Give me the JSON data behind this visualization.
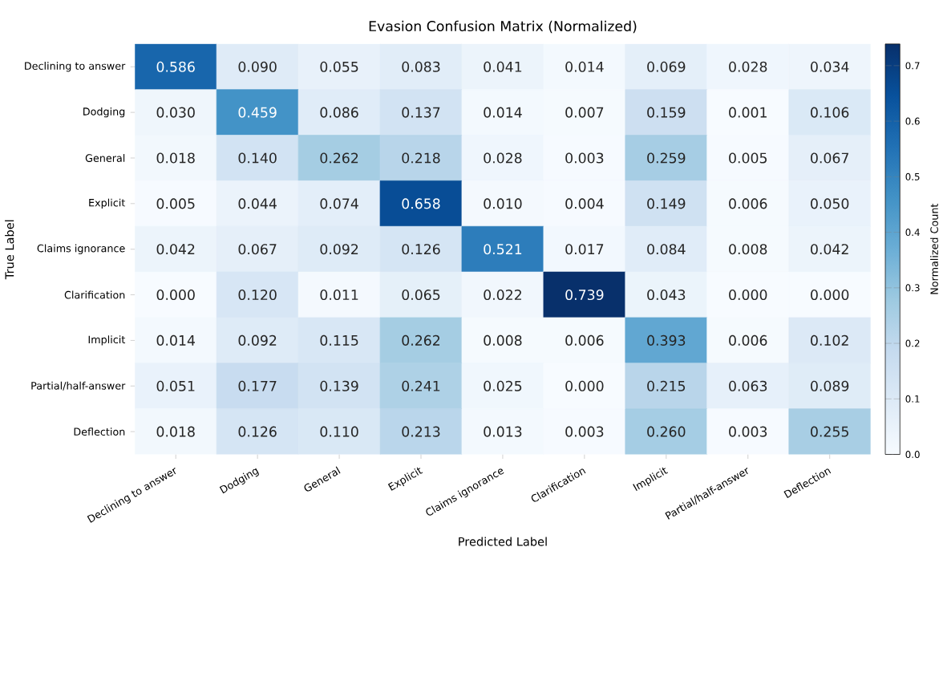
{
  "chart_data": {
    "type": "heatmap",
    "title": "Evasion Confusion Matrix (Normalized)",
    "xlabel": "Predicted Label",
    "ylabel": "True Label",
    "clabel": "Normalized Count",
    "categories": [
      "Declining to answer",
      "Dodging",
      "General",
      "Explicit",
      "Claims ignorance",
      "Clarification",
      "Implicit",
      "Partial/half-answer",
      "Deflection"
    ],
    "y_categories": [
      "Declining to answer",
      "Dodging",
      "General",
      "Explicit",
      "Claims ignorance",
      "Clarification",
      "Implicit",
      "Partial/half-answer",
      "Deflection"
    ],
    "cells": [
      [
        0.586,
        0.09,
        0.055,
        0.083,
        0.041,
        0.014,
        0.069,
        0.028,
        0.034
      ],
      [
        0.03,
        0.459,
        0.086,
        0.137,
        0.014,
        0.007,
        0.159,
        0.001,
        0.106
      ],
      [
        0.018,
        0.14,
        0.262,
        0.218,
        0.028,
        0.003,
        0.259,
        0.005,
        0.067
      ],
      [
        0.005,
        0.044,
        0.074,
        0.658,
        0.01,
        0.004,
        0.149,
        0.006,
        0.05
      ],
      [
        0.042,
        0.067,
        0.092,
        0.126,
        0.521,
        0.017,
        0.084,
        0.008,
        0.042
      ],
      [
        0.0,
        0.12,
        0.011,
        0.065,
        0.022,
        0.739,
        0.043,
        0.0,
        0.0
      ],
      [
        0.014,
        0.092,
        0.115,
        0.262,
        0.008,
        0.006,
        0.393,
        0.006,
        0.102
      ],
      [
        0.051,
        0.177,
        0.139,
        0.241,
        0.025,
        0.0,
        0.215,
        0.063,
        0.089
      ],
      [
        0.018,
        0.126,
        0.11,
        0.213,
        0.013,
        0.003,
        0.26,
        0.003,
        0.255
      ]
    ],
    "cell_labels": [
      [
        "0.586",
        "0.090",
        "0.055",
        "0.083",
        "0.041",
        "0.014",
        "0.069",
        "0.028",
        "0.034"
      ],
      [
        "0.030",
        "0.459",
        "0.086",
        "0.137",
        "0.014",
        "0.007",
        "0.159",
        "0.001",
        "0.106"
      ],
      [
        "0.018",
        "0.140",
        "0.262",
        "0.218",
        "0.028",
        "0.003",
        "0.259",
        "0.005",
        "0.067"
      ],
      [
        "0.005",
        "0.044",
        "0.074",
        "0.658",
        "0.010",
        "0.004",
        "0.149",
        "0.006",
        "0.050"
      ],
      [
        "0.042",
        "0.067",
        "0.092",
        "0.126",
        "0.521",
        "0.017",
        "0.084",
        "0.008",
        "0.042"
      ],
      [
        "0.000",
        "0.120",
        "0.011",
        "0.065",
        "0.022",
        "0.739",
        "0.043",
        "0.000",
        "0.000"
      ],
      [
        "0.014",
        "0.092",
        "0.115",
        "0.262",
        "0.008",
        "0.006",
        "0.393",
        "0.006",
        "0.102"
      ],
      [
        "0.051",
        "0.177",
        "0.139",
        "0.241",
        "0.025",
        "0.000",
        "0.215",
        "0.063",
        "0.089"
      ],
      [
        "0.018",
        "0.126",
        "0.110",
        "0.213",
        "0.013",
        "0.003",
        "0.260",
        "0.003",
        "0.255"
      ]
    ],
    "clim": [
      0,
      0.739
    ],
    "cticks": [
      {
        "value": 0,
        "label": "0.0"
      },
      {
        "value": 0.1,
        "label": "0.1"
      },
      {
        "value": 0.2,
        "label": "0.2"
      },
      {
        "value": 0.3,
        "label": "0.3"
      },
      {
        "value": 0.4,
        "label": "0.4"
      },
      {
        "value": 0.5,
        "label": "0.5"
      },
      {
        "value": 0.6,
        "label": "0.6"
      },
      {
        "value": 0.7,
        "label": "0.7"
      }
    ]
  }
}
